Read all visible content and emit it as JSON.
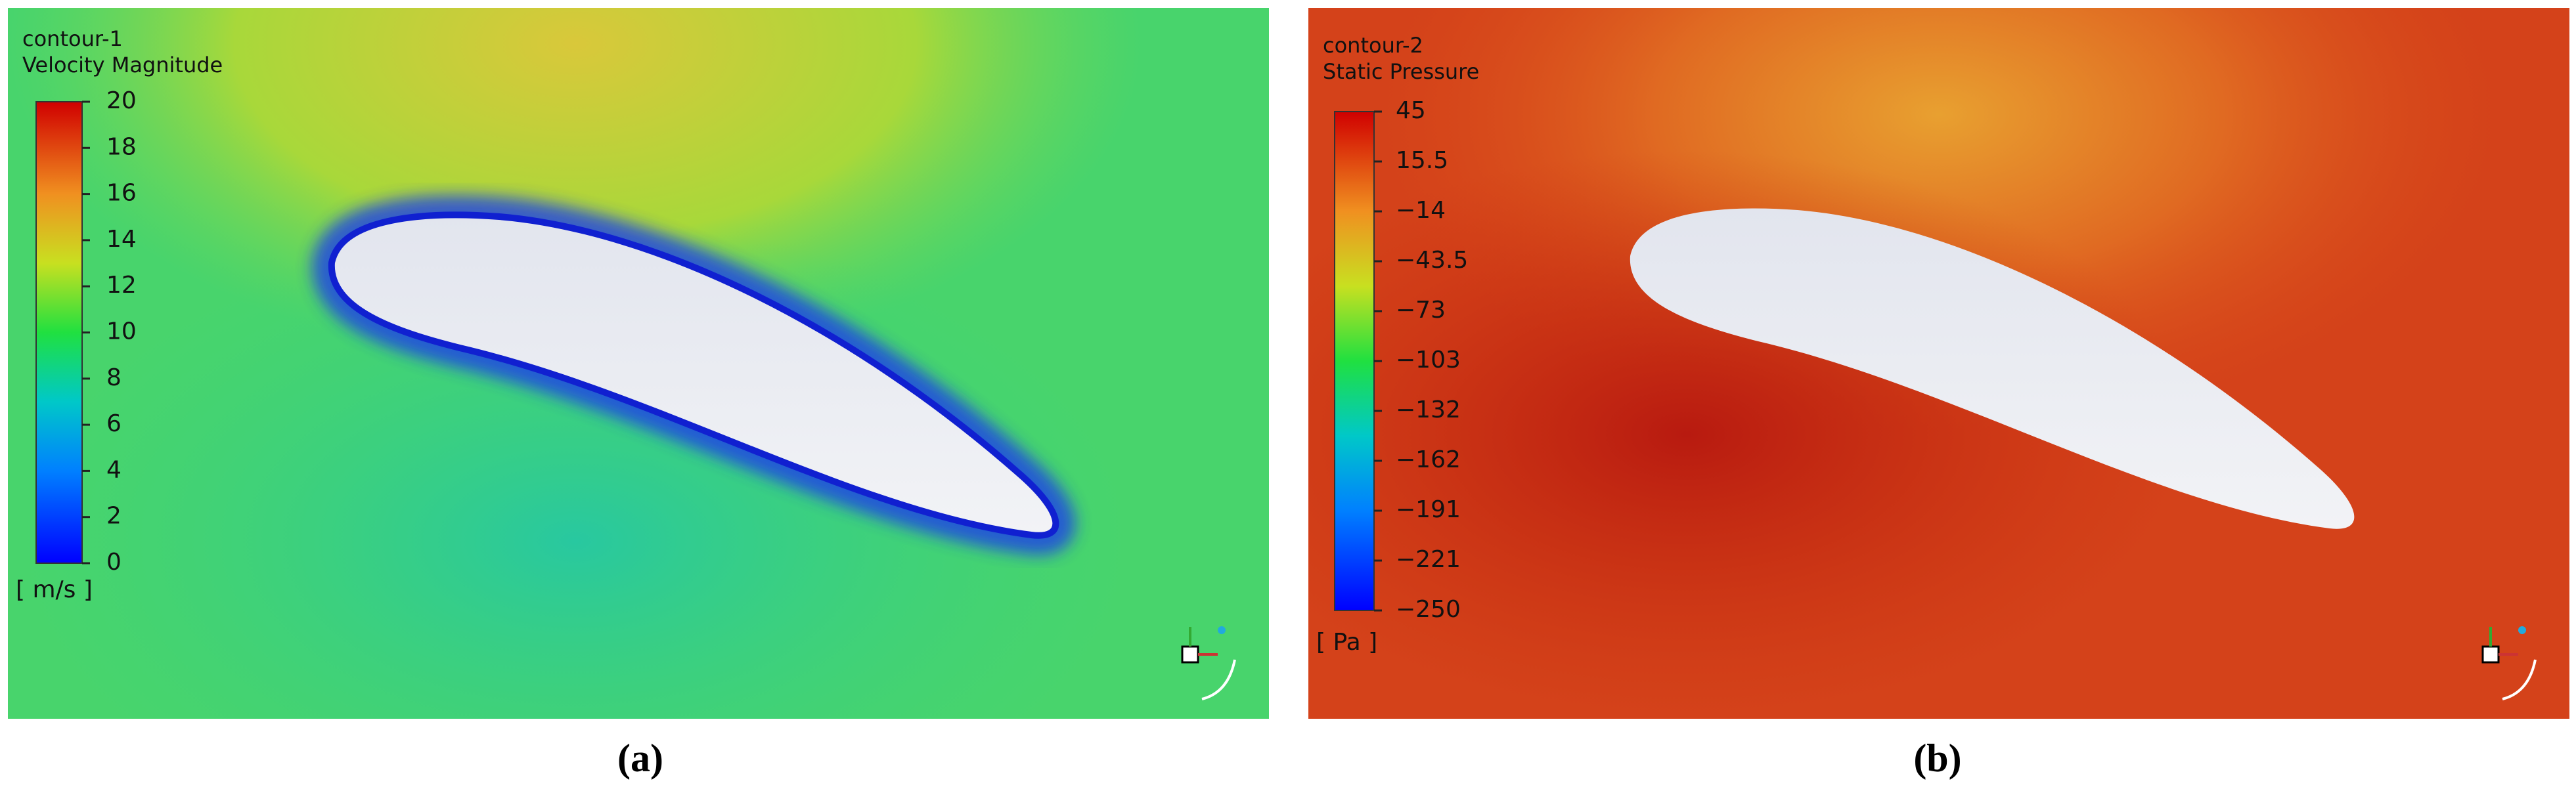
{
  "panels": [
    {
      "title": "contour-1",
      "quantity": "Velocity Magnitude",
      "units": "[ m/s ]",
      "caption": "(a)",
      "ticks": [
        "20",
        "18",
        "16",
        "14",
        "12",
        "10",
        "8",
        "6",
        "4",
        "2",
        "0"
      ]
    },
    {
      "title": "contour-2",
      "quantity": "Static Pressure",
      "units": "[ Pa ]",
      "caption": "(b)",
      "ticks": [
        "45",
        "15.5",
        "−14",
        "−43.5",
        "−73",
        "−103",
        "−132",
        "−162",
        "−191",
        "−221",
        "−250"
      ]
    }
  ]
}
